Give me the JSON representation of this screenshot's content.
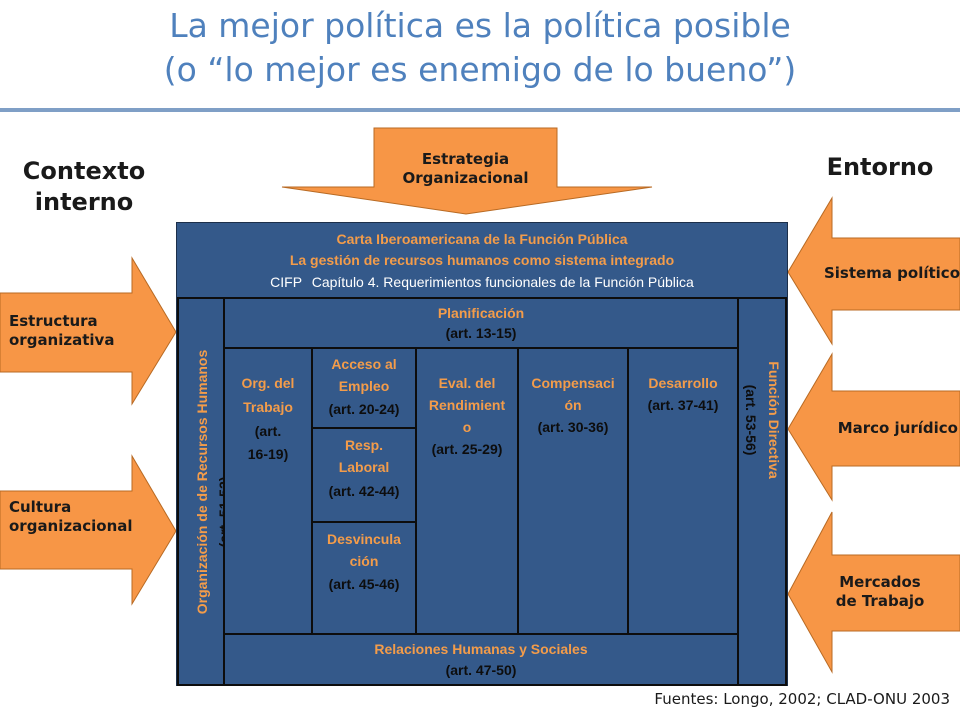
{
  "title": {
    "line1": "La mejor política es la política posible",
    "line2": "(o “lo mejor es enemigo de lo bueno”)"
  },
  "headings": {
    "left_line1": "Contexto",
    "left_line2": "interno",
    "right": "Entorno"
  },
  "top_arrow": {
    "line1": "Estrategia",
    "line2": "Organizacional"
  },
  "left_arrows": [
    {
      "line1": "Estructura",
      "line2": "organizativa"
    },
    {
      "line1": "Cultura",
      "line2": "organizacional"
    }
  ],
  "right_arrows": [
    {
      "line1": "Sistema político",
      "line2": ""
    },
    {
      "line1": "Marco jurídico",
      "line2": ""
    },
    {
      "line1": "Mercados",
      "line2": "de Trabajo"
    }
  ],
  "box": {
    "header": {
      "line1": "Carta Iberoamericana de la Función Pública",
      "line2": "La gestión de recursos humanos como sistema integrado",
      "line3a": "CIFP",
      "line3b": "Capítulo 4. Requerimientos funcionales de la Función Pública"
    },
    "left_column": {
      "title": "Organización de de Recursos Humanos",
      "ref": "(art. 51-52)"
    },
    "right_column": {
      "title": "Función Directiva",
      "ref": "(art. 53-56)"
    },
    "planificacion": {
      "title": "Planificación",
      "ref": "(art. 13-15)"
    },
    "org_trabajo": {
      "l1": "Org. del",
      "l2": "Trabajo",
      "l3": "(art.",
      "l4": "16-19)"
    },
    "acceso": {
      "l1": "Acceso al",
      "l2": "Empleo",
      "ref": "(art. 20-24)"
    },
    "resp": {
      "l1": "Resp.",
      "l2": "Laboral",
      "ref": "(art. 42-44)"
    },
    "desvinc": {
      "l1": "Desvincula",
      "l2": "ción",
      "ref": "(art. 45-46)"
    },
    "eval": {
      "l1": "Eval. del",
      "l2": "Rendimient",
      "l3": "o",
      "ref": "(art. 25-29)"
    },
    "compens": {
      "l1": "Compensaci",
      "l2": "ón",
      "ref": "(art. 30-36)"
    },
    "desarrollo": {
      "title": "Desarrollo",
      "ref": "(art. 37-41)"
    },
    "relaciones": {
      "title": "Relaciones Humanas y Sociales",
      "ref": "(art. 47-50)"
    }
  },
  "source": "Fuentes: Longo, 2002; CLAD-ONU 2003",
  "colors": {
    "title": "#4f81bd",
    "arrow": "#f79646",
    "box": "#34598a",
    "label_orange": "#f39c4a"
  }
}
